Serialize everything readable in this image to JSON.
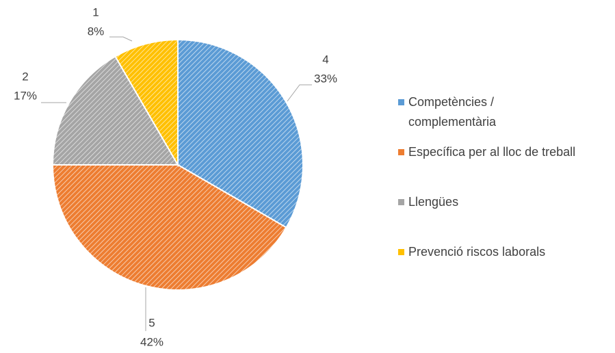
{
  "chart_data": {
    "type": "pie",
    "categories": [
      "Competències / complementària",
      "Específica per al lloc de treball",
      "Llengües",
      "Prevenció riscos laborals"
    ],
    "values": [
      4,
      5,
      2,
      1
    ],
    "percent_labels": [
      "33%",
      "42%",
      "17%",
      "8%"
    ],
    "colors": [
      "#5b9bd5",
      "#ed7d31",
      "#a5a5a5",
      "#ffc000"
    ],
    "legend": "right"
  }
}
